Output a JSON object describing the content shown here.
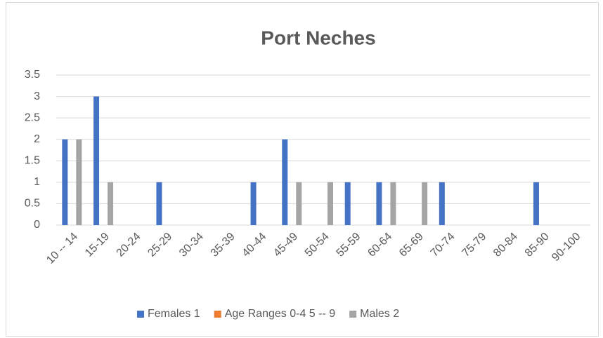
{
  "chart_data": {
    "type": "bar",
    "title": "Port Neches",
    "categories": [
      "10 -- 14",
      "15-19",
      "20-24",
      "25-29",
      "30-34",
      "35-39",
      "40-44",
      "45-49",
      "50-54",
      "55-59",
      "60-64",
      "65-69",
      "70-74",
      "75-79",
      "80-84",
      "85-90",
      "90-100"
    ],
    "series": [
      {
        "name": "Females 1",
        "color": "#4472c4",
        "values": [
          2,
          3,
          null,
          1,
          null,
          null,
          1,
          2,
          null,
          1,
          1,
          null,
          1,
          null,
          null,
          1,
          null
        ]
      },
      {
        "name": "Age Ranges 0-4 5 -- 9",
        "color": "#ed7d31",
        "values": [
          null,
          null,
          null,
          null,
          null,
          null,
          null,
          null,
          null,
          null,
          null,
          null,
          null,
          null,
          null,
          null,
          null
        ]
      },
      {
        "name": "Males 2",
        "color": "#a5a5a5",
        "values": [
          2,
          1,
          null,
          null,
          null,
          null,
          null,
          1,
          1,
          null,
          1,
          1,
          null,
          null,
          null,
          null,
          null
        ]
      }
    ],
    "ylim": [
      0,
      3.5
    ],
    "yticks": [
      0,
      0.5,
      1,
      1.5,
      2,
      2.5,
      3,
      3.5
    ],
    "grid": true,
    "legend": "bottom"
  }
}
